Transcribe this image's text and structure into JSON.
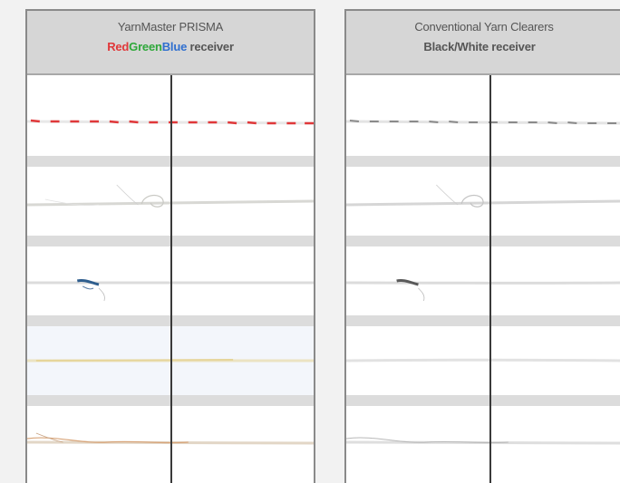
{
  "left_panel": {
    "title": "YarnMaster PRISMA",
    "subtitle_red": "Red",
    "subtitle_green": "Green",
    "subtitle_blue": "Blue",
    "subtitle_rest": " receiver"
  },
  "right_panel": {
    "title": "Conventional Yarn Clearers",
    "subtitle": "Black/White receiver"
  },
  "colors": {
    "red": "#e0383a",
    "green": "#2ea83a",
    "blue": "#2f6fcf",
    "header_bg": "#d6d6d6",
    "border": "#8a8a8a"
  },
  "yarn_samples_left": [
    "red-white-twisted-yarn",
    "white-yarn-with-loop",
    "yarn-with-blue-fleck",
    "yellowish-yarn",
    "orange-tinted-hairy-yarn"
  ],
  "yarn_samples_right": [
    "grey-twisted-yarn",
    "white-yarn-with-loop",
    "yarn-with-dark-fleck",
    "faint-grey-yarn",
    "grey-hairy-yarn"
  ]
}
